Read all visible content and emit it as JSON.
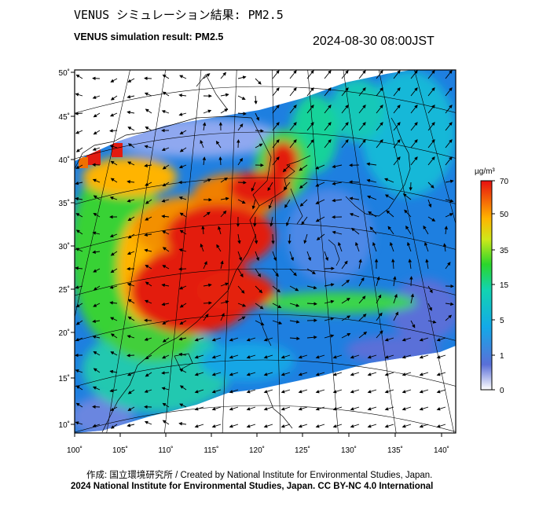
{
  "title_jp": "VENUS シミュレーション結果: PM2.5",
  "title_en": "VENUS simulation result: PM2.5",
  "timestamp": "2024-08-30 08:00JST",
  "credit": "作成: 国立環境研究所 / Created by National Institute for Environmental Studies, Japan.",
  "copyright": "2024 National Institute for Environmental Studies, Japan. CC BY-NC 4.0 International",
  "colorbar": {
    "unit": "µg/m³",
    "labels": [
      "70",
      "50",
      "35",
      "15",
      "5",
      "1",
      "0"
    ],
    "stops": [
      {
        "pos": 0.0,
        "color": "#ffffff"
      },
      {
        "pos": 0.12,
        "color": "#5a6fd8"
      },
      {
        "pos": 0.3,
        "color": "#13a9e8"
      },
      {
        "pos": 0.48,
        "color": "#12d4b0"
      },
      {
        "pos": 0.6,
        "color": "#2bd62b"
      },
      {
        "pos": 0.72,
        "color": "#cfe81a"
      },
      {
        "pos": 0.82,
        "color": "#ffb400"
      },
      {
        "pos": 1.0,
        "color": "#e81010"
      }
    ]
  },
  "axes": {
    "lon_labels": [
      "100˚",
      "105˚",
      "110˚",
      "115˚",
      "120˚",
      "125˚",
      "130˚",
      "135˚",
      "140˚"
    ],
    "lat_labels": [
      "50˚",
      "45˚",
      "40˚",
      "35˚",
      "30˚",
      "25˚",
      "20˚",
      "15˚",
      "10˚"
    ],
    "lon_range": [
      100,
      141
    ],
    "lat_range": [
      9,
      51
    ]
  }
}
